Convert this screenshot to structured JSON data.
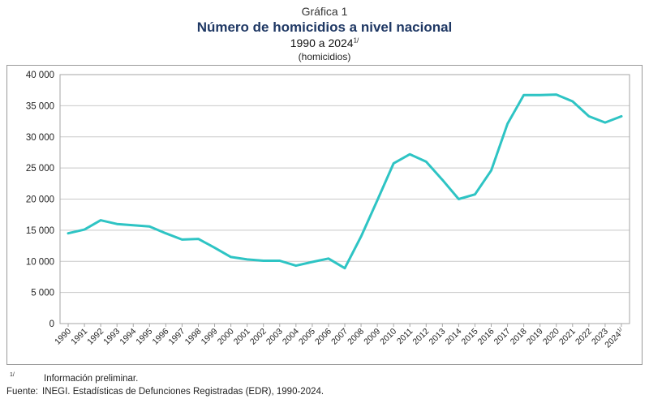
{
  "header": {
    "label": "Gráfica 1",
    "title": "Número de homicidios a nivel nacional",
    "range": "1990 a 2024",
    "range_note": "1/",
    "unit": "(homicidios)"
  },
  "footer": {
    "note_mark": "1/",
    "note": "Información preliminar.",
    "source_label": "Fuente:",
    "source": "INEGI. Estadísticas de Defunciones Registradas (EDR), 1990-2024."
  },
  "chart_data": {
    "type": "line",
    "title": "Número de homicidios a nivel nacional",
    "xlabel": "",
    "ylabel": "",
    "ylim": [
      0,
      40000
    ],
    "yticks": [
      0,
      5000,
      10000,
      15000,
      20000,
      25000,
      30000,
      35000,
      40000
    ],
    "ytick_labels": [
      "0",
      "5 000",
      "10 000",
      "15 000",
      "20 000",
      "25 000",
      "30 000",
      "35 000",
      "40 000"
    ],
    "grid": "horizontal",
    "line_color": "#2ec4c4",
    "categories": [
      "1990",
      "1991",
      "1992",
      "1993",
      "1994",
      "1995",
      "1996",
      "1997",
      "1998",
      "1999",
      "2000",
      "2001",
      "2002",
      "2003",
      "2004",
      "2005",
      "2006",
      "2007",
      "2008",
      "2009",
      "2010",
      "2011",
      "2012",
      "2013",
      "2014",
      "2015",
      "2016",
      "2017",
      "2018",
      "2019",
      "2020",
      "2021",
      "2022",
      "2023",
      "2024"
    ],
    "category_notes": {
      "2024": "1/"
    },
    "series": [
      {
        "values": [
          14500,
          15100,
          16600,
          16000,
          15800,
          15600,
          14500,
          13500,
          13600,
          12200,
          10700,
          10300,
          10100,
          10100,
          9300,
          9900,
          10450,
          8900,
          14000,
          19800,
          25750,
          27200,
          26000,
          23100,
          20000,
          20750,
          24600,
          32100,
          36700,
          36700,
          36800,
          35700,
          33300,
          32300,
          33300
        ]
      }
    ]
  }
}
